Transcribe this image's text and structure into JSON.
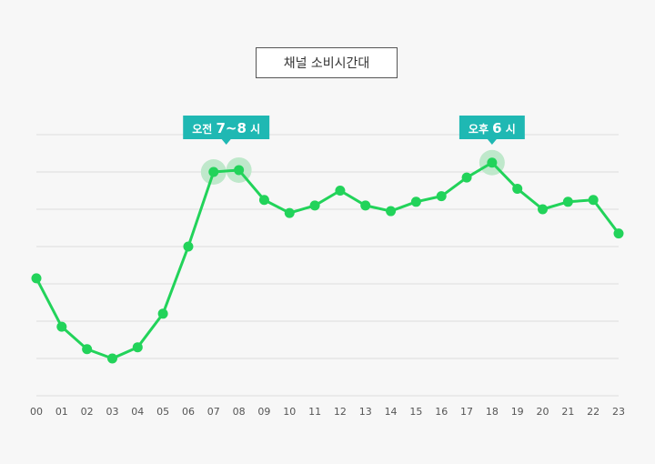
{
  "chart_data": {
    "type": "line",
    "title": "채널 소비시간대",
    "categories": [
      "00",
      "01",
      "02",
      "03",
      "04",
      "05",
      "06",
      "07",
      "08",
      "09",
      "10",
      "11",
      "12",
      "13",
      "14",
      "15",
      "16",
      "17",
      "18",
      "19",
      "20",
      "21",
      "22",
      "23"
    ],
    "values": [
      63,
      37,
      25,
      20,
      26,
      44,
      80,
      120,
      121,
      105,
      98,
      102,
      110,
      102,
      99,
      104,
      107,
      117,
      125,
      111,
      100,
      104,
      105,
      87
    ],
    "ylim": [
      0,
      140
    ],
    "grid": true,
    "callouts": [
      {
        "prefix": "오전 ",
        "big": "7~8",
        "suffix": " 시",
        "anchor_index": 7,
        "highlight_indices": [
          7,
          8
        ]
      },
      {
        "prefix": "오후 ",
        "big": "6",
        "suffix": " 시",
        "anchor_index": 18,
        "highlight_indices": [
          18
        ]
      }
    ],
    "colors": {
      "line": "#22d35a",
      "callout": "#1fb8b3",
      "halo": "#bfe8cb",
      "grid": "#dddddd"
    }
  }
}
